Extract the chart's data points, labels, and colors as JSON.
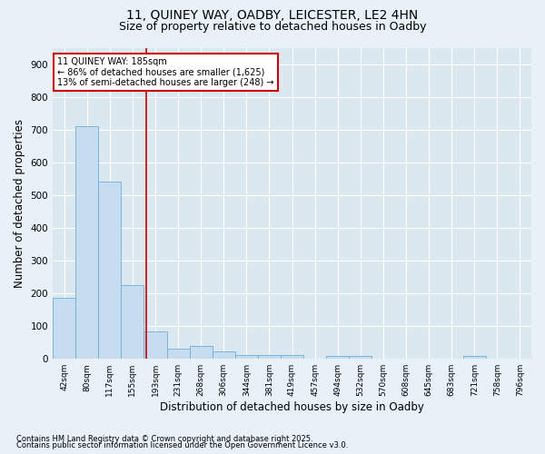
{
  "title1": "11, QUINEY WAY, OADBY, LEICESTER, LE2 4HN",
  "title2": "Size of property relative to detached houses in Oadby",
  "xlabel": "Distribution of detached houses by size in Oadby",
  "ylabel": "Number of detached properties",
  "categories": [
    "42sqm",
    "80sqm",
    "117sqm",
    "155sqm",
    "193sqm",
    "231sqm",
    "268sqm",
    "306sqm",
    "344sqm",
    "381sqm",
    "419sqm",
    "457sqm",
    "494sqm",
    "532sqm",
    "570sqm",
    "608sqm",
    "645sqm",
    "683sqm",
    "721sqm",
    "758sqm",
    "796sqm"
  ],
  "values": [
    185,
    710,
    540,
    225,
    85,
    30,
    40,
    22,
    12,
    12,
    12,
    0,
    10,
    10,
    0,
    0,
    0,
    0,
    10,
    0,
    0
  ],
  "bar_color": "#c8dcef",
  "bar_edge_color": "#6aaed6",
  "red_line_x": 3.62,
  "annotation_line1": "11 QUINEY WAY: 185sqm",
  "annotation_line2": "← 86% of detached houses are smaller (1,625)",
  "annotation_line3": "13% of semi-detached houses are larger (248) →",
  "annotation_box_color": "#ffffff",
  "annotation_box_edge_color": "#cc0000",
  "ylim": [
    0,
    950
  ],
  "yticks": [
    0,
    100,
    200,
    300,
    400,
    500,
    600,
    700,
    800,
    900
  ],
  "plot_bg_color": "#dce8f0",
  "fig_bg_color": "#e8f0f8",
  "grid_color": "#ffffff",
  "footer1": "Contains HM Land Registry data © Crown copyright and database right 2025.",
  "footer2": "Contains public sector information licensed under the Open Government Licence v3.0.",
  "title1_fontsize": 10,
  "title2_fontsize": 9,
  "footer_fontsize": 6
}
